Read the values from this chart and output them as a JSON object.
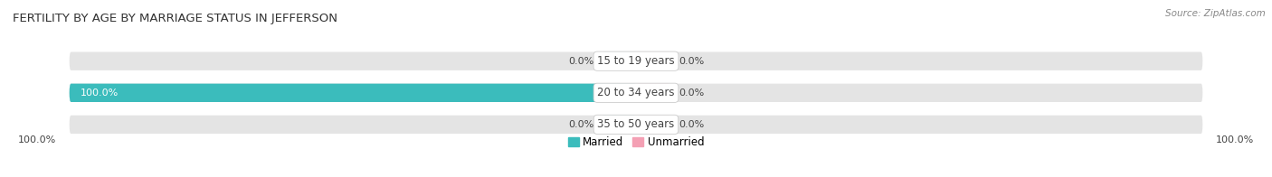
{
  "title": "FERTILITY BY AGE BY MARRIAGE STATUS IN JEFFERSON",
  "source": "Source: ZipAtlas.com",
  "categories": [
    "15 to 19 years",
    "20 to 34 years",
    "35 to 50 years"
  ],
  "married_values": [
    0.0,
    100.0,
    0.0
  ],
  "unmarried_values": [
    0.0,
    0.0,
    0.0
  ],
  "married_color": "#3bbcbc",
  "unmarried_color": "#f4a0b4",
  "bar_bg_color": "#e4e4e4",
  "bar_height": 0.58,
  "label_color": "#444444",
  "title_color": "#333333",
  "center_label_color": "#444444",
  "left_footer": "100.0%",
  "right_footer": "100.0%",
  "legend_married": "Married",
  "legend_unmarried": "Unmarried",
  "nub_size": 6.0,
  "figsize": [
    14.06,
    1.96
  ],
  "dpi": 100
}
